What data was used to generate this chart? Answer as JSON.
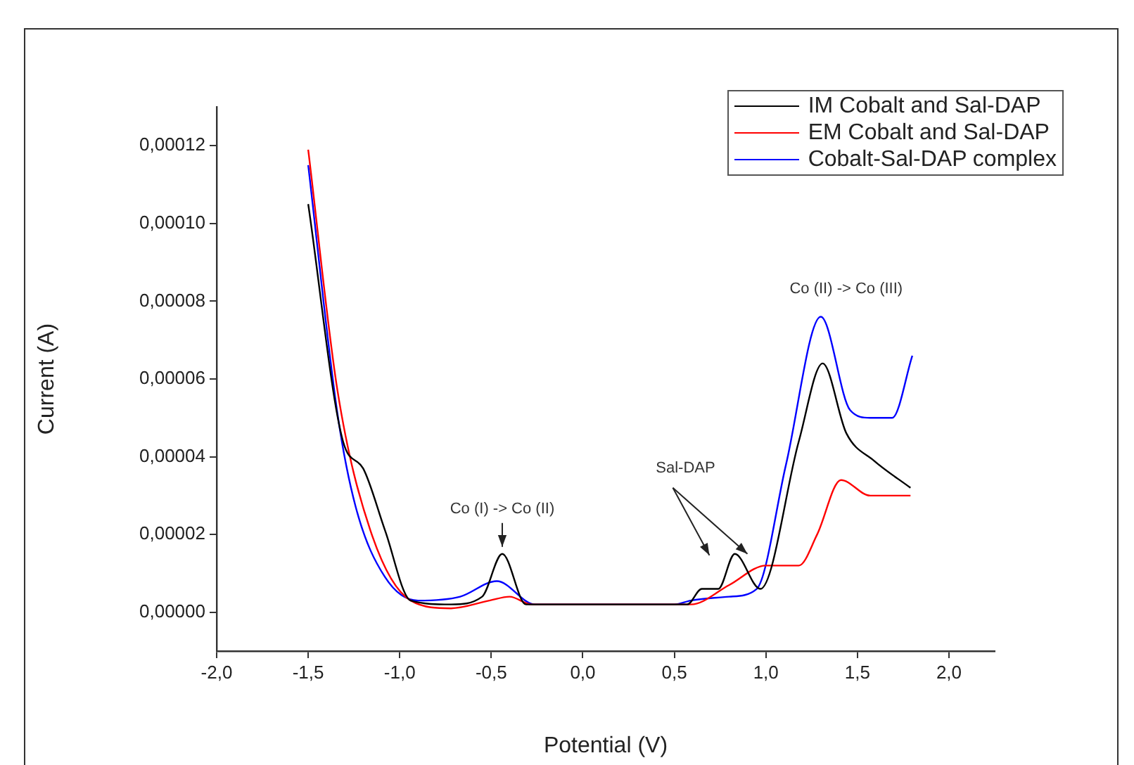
{
  "chart_data": {
    "type": "line",
    "xlabel": "Potential (V)",
    "ylabel": "Current (A)",
    "xlim": [
      -2,
      2.25
    ],
    "xticks": [
      {
        "value": -2,
        "label": "-2,0"
      },
      {
        "value": -1.5,
        "label": "-1,5"
      },
      {
        "value": -1,
        "label": "-1,0"
      },
      {
        "value": -0.5,
        "label": "-0,5"
      },
      {
        "value": 0,
        "label": "0,0"
      },
      {
        "value": 0.5,
        "label": "0,5"
      },
      {
        "value": 1,
        "label": "1,0"
      },
      {
        "value": 1.5,
        "label": "1,5"
      },
      {
        "value": 2,
        "label": "2,0"
      }
    ],
    "ylim": [
      -1e-05,
      0.00013
    ],
    "yticks": [
      {
        "value": 0,
        "label": "0,00000"
      },
      {
        "value": 2e-05,
        "label": "0,00002"
      },
      {
        "value": 4e-05,
        "label": "0,00004"
      },
      {
        "value": 6e-05,
        "label": "0,00006"
      },
      {
        "value": 8e-05,
        "label": "0,00008"
      },
      {
        "value": 0.0001,
        "label": "0,00010"
      },
      {
        "value": 0.00012,
        "label": "0,00012"
      }
    ],
    "grid": false,
    "legend": "top right",
    "marker": "none",
    "line_style": "solid",
    "series": [
      {
        "name": "IM Cobalt and Sal-DAP",
        "color": "#000000",
        "x": [
          -1.5,
          -1.31,
          -1.2,
          -1.08,
          -0.94,
          -0.72,
          -0.55,
          -0.44,
          -0.31,
          0,
          0.5,
          0.57,
          0.65,
          0.74,
          0.83,
          0.97,
          1.18,
          1.31,
          1.44,
          1.59,
          1.79
        ],
        "values": [
          0.000105,
          4.4e-05,
          3.7e-05,
          2.1e-05,
          3e-06,
          2e-06,
          4e-06,
          1.5e-05,
          2e-06,
          2e-06,
          2e-06,
          2e-06,
          6e-06,
          6e-06,
          1.5e-05,
          6e-06,
          4.4e-05,
          6.4e-05,
          4.6e-05,
          3.9e-05,
          3.2e-05
        ]
      },
      {
        "name": "EM Cobalt and Sal-DAP",
        "color": "#ff0000",
        "x": [
          -1.5,
          -1.34,
          -1.16,
          -0.94,
          -0.72,
          -0.51,
          -0.4,
          -0.28,
          0,
          0.5,
          0.59,
          0.8,
          1,
          1.18,
          1.28,
          1.41,
          1.57,
          1.79
        ],
        "values": [
          0.000119,
          5.7e-05,
          2.1e-05,
          3e-06,
          1e-06,
          3e-06,
          4e-06,
          2e-06,
          2e-06,
          2e-06,
          2e-06,
          7e-06,
          1.2e-05,
          1.2e-05,
          2e-05,
          3.4e-05,
          3e-05,
          3e-05
        ]
      },
      {
        "name": "Cobalt-Sal-DAP complex",
        "color": "#0000ff",
        "x": [
          -1.5,
          -1.34,
          -1.24,
          -1.08,
          -0.9,
          -0.67,
          -0.47,
          -0.26,
          0,
          0.5,
          0.59,
          0.8,
          0.95,
          1.11,
          1.3,
          1.46,
          1.57,
          1.69,
          1.8
        ],
        "values": [
          0.000115,
          5.1e-05,
          2.7e-05,
          9e-06,
          3e-06,
          4e-06,
          8e-06,
          2e-06,
          2e-06,
          2e-06,
          3e-06,
          4e-06,
          6e-06,
          3.8e-05,
          7.6e-05,
          5.2e-05,
          5e-05,
          5e-05,
          6.6e-05
        ]
      }
    ],
    "annotations": [
      {
        "text": "Co (I) -> Co (II)",
        "x": -0.44,
        "y": 1.5e-05
      },
      {
        "text": "Sal-DAP",
        "x": 0.83,
        "y": 1.5e-05
      },
      {
        "text": "Co (II) -> Co (III)",
        "x": 1.3,
        "y": 7.6e-05
      }
    ]
  }
}
